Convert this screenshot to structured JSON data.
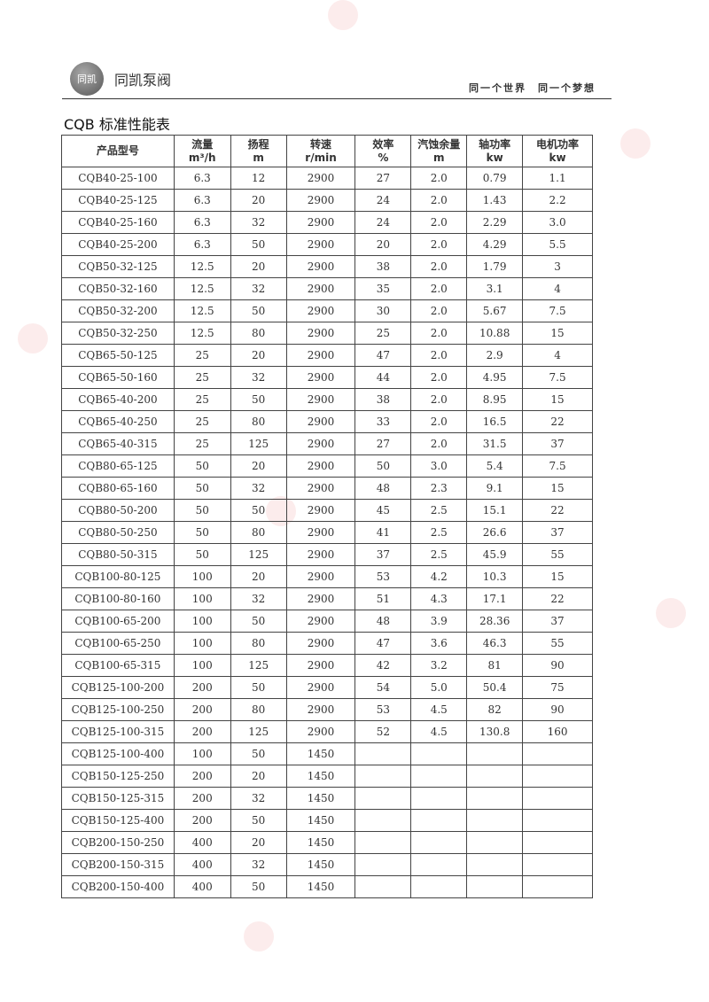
{
  "header": {
    "logo_text": "同凯",
    "brand": "同凯泵阀",
    "slogan": "同一个世界　同一个梦想"
  },
  "title": "CQB 标准性能表",
  "table": {
    "columns": [
      [
        "产品型号",
        ""
      ],
      [
        "流量",
        "m³/h"
      ],
      [
        "扬程",
        "m"
      ],
      [
        "转速",
        "r/min"
      ],
      [
        "效率",
        "%"
      ],
      [
        "汽蚀余量",
        "m"
      ],
      [
        "轴功率",
        "kw"
      ],
      [
        "电机功率",
        "kw"
      ]
    ],
    "rows": [
      [
        "CQB40-25-100",
        "6.3",
        "12",
        "2900",
        "27",
        "2.0",
        "0.79",
        "1.1"
      ],
      [
        "CQB40-25-125",
        "6.3",
        "20",
        "2900",
        "24",
        "2.0",
        "1.43",
        "2.2"
      ],
      [
        "CQB40-25-160",
        "6.3",
        "32",
        "2900",
        "24",
        "2.0",
        "2.29",
        "3.0"
      ],
      [
        "CQB40-25-200",
        "6.3",
        "50",
        "2900",
        "20",
        "2.0",
        "4.29",
        "5.5"
      ],
      [
        "CQB50-32-125",
        "12.5",
        "20",
        "2900",
        "38",
        "2.0",
        "1.79",
        "3"
      ],
      [
        "CQB50-32-160",
        "12.5",
        "32",
        "2900",
        "35",
        "2.0",
        "3.1",
        "4"
      ],
      [
        "CQB50-32-200",
        "12.5",
        "50",
        "2900",
        "30",
        "2.0",
        "5.67",
        "7.5"
      ],
      [
        "CQB50-32-250",
        "12.5",
        "80",
        "2900",
        "25",
        "2.0",
        "10.88",
        "15"
      ],
      [
        "CQB65-50-125",
        "25",
        "20",
        "2900",
        "47",
        "2.0",
        "2.9",
        "4"
      ],
      [
        "CQB65-50-160",
        "25",
        "32",
        "2900",
        "44",
        "2.0",
        "4.95",
        "7.5"
      ],
      [
        "CQB65-40-200",
        "25",
        "50",
        "2900",
        "38",
        "2.0",
        "8.95",
        "15"
      ],
      [
        "CQB65-40-250",
        "25",
        "80",
        "2900",
        "33",
        "2.0",
        "16.5",
        "22"
      ],
      [
        "CQB65-40-315",
        "25",
        "125",
        "2900",
        "27",
        "2.0",
        "31.5",
        "37"
      ],
      [
        "CQB80-65-125",
        "50",
        "20",
        "2900",
        "50",
        "3.0",
        "5.4",
        "7.5"
      ],
      [
        "CQB80-65-160",
        "50",
        "32",
        "2900",
        "48",
        "2.3",
        "9.1",
        "15"
      ],
      [
        "CQB80-50-200",
        "50",
        "50",
        "2900",
        "45",
        "2.5",
        "15.1",
        "22"
      ],
      [
        "CQB80-50-250",
        "50",
        "80",
        "2900",
        "41",
        "2.5",
        "26.6",
        "37"
      ],
      [
        "CQB80-50-315",
        "50",
        "125",
        "2900",
        "37",
        "2.5",
        "45.9",
        "55"
      ],
      [
        "CQB100-80-125",
        "100",
        "20",
        "2900",
        "53",
        "4.2",
        "10.3",
        "15"
      ],
      [
        "CQB100-80-160",
        "100",
        "32",
        "2900",
        "51",
        "4.3",
        "17.1",
        "22"
      ],
      [
        "CQB100-65-200",
        "100",
        "50",
        "2900",
        "48",
        "3.9",
        "28.36",
        "37"
      ],
      [
        "CQB100-65-250",
        "100",
        "80",
        "2900",
        "47",
        "3.6",
        "46.3",
        "55"
      ],
      [
        "CQB100-65-315",
        "100",
        "125",
        "2900",
        "42",
        "3.2",
        "81",
        "90"
      ],
      [
        "CQB125-100-200",
        "200",
        "50",
        "2900",
        "54",
        "5.0",
        "50.4",
        "75"
      ],
      [
        "CQB125-100-250",
        "200",
        "80",
        "2900",
        "53",
        "4.5",
        "82",
        "90"
      ],
      [
        "CQB125-100-315",
        "200",
        "125",
        "2900",
        "52",
        "4.5",
        "130.8",
        "160"
      ],
      [
        "CQB125-100-400",
        "100",
        "50",
        "1450",
        "",
        "",
        "",
        ""
      ],
      [
        "CQB150-125-250",
        "200",
        "20",
        "1450",
        "",
        "",
        "",
        ""
      ],
      [
        "CQB150-125-315",
        "200",
        "32",
        "1450",
        "",
        "",
        "",
        ""
      ],
      [
        "CQB150-125-400",
        "200",
        "50",
        "1450",
        "",
        "",
        "",
        ""
      ],
      [
        "CQB200-150-250",
        "400",
        "20",
        "1450",
        "",
        "",
        "",
        ""
      ],
      [
        "CQB200-150-315",
        "400",
        "32",
        "1450",
        "",
        "",
        "",
        ""
      ],
      [
        "CQB200-150-400",
        "400",
        "50",
        "1450",
        "",
        "",
        "",
        ""
      ]
    ]
  }
}
